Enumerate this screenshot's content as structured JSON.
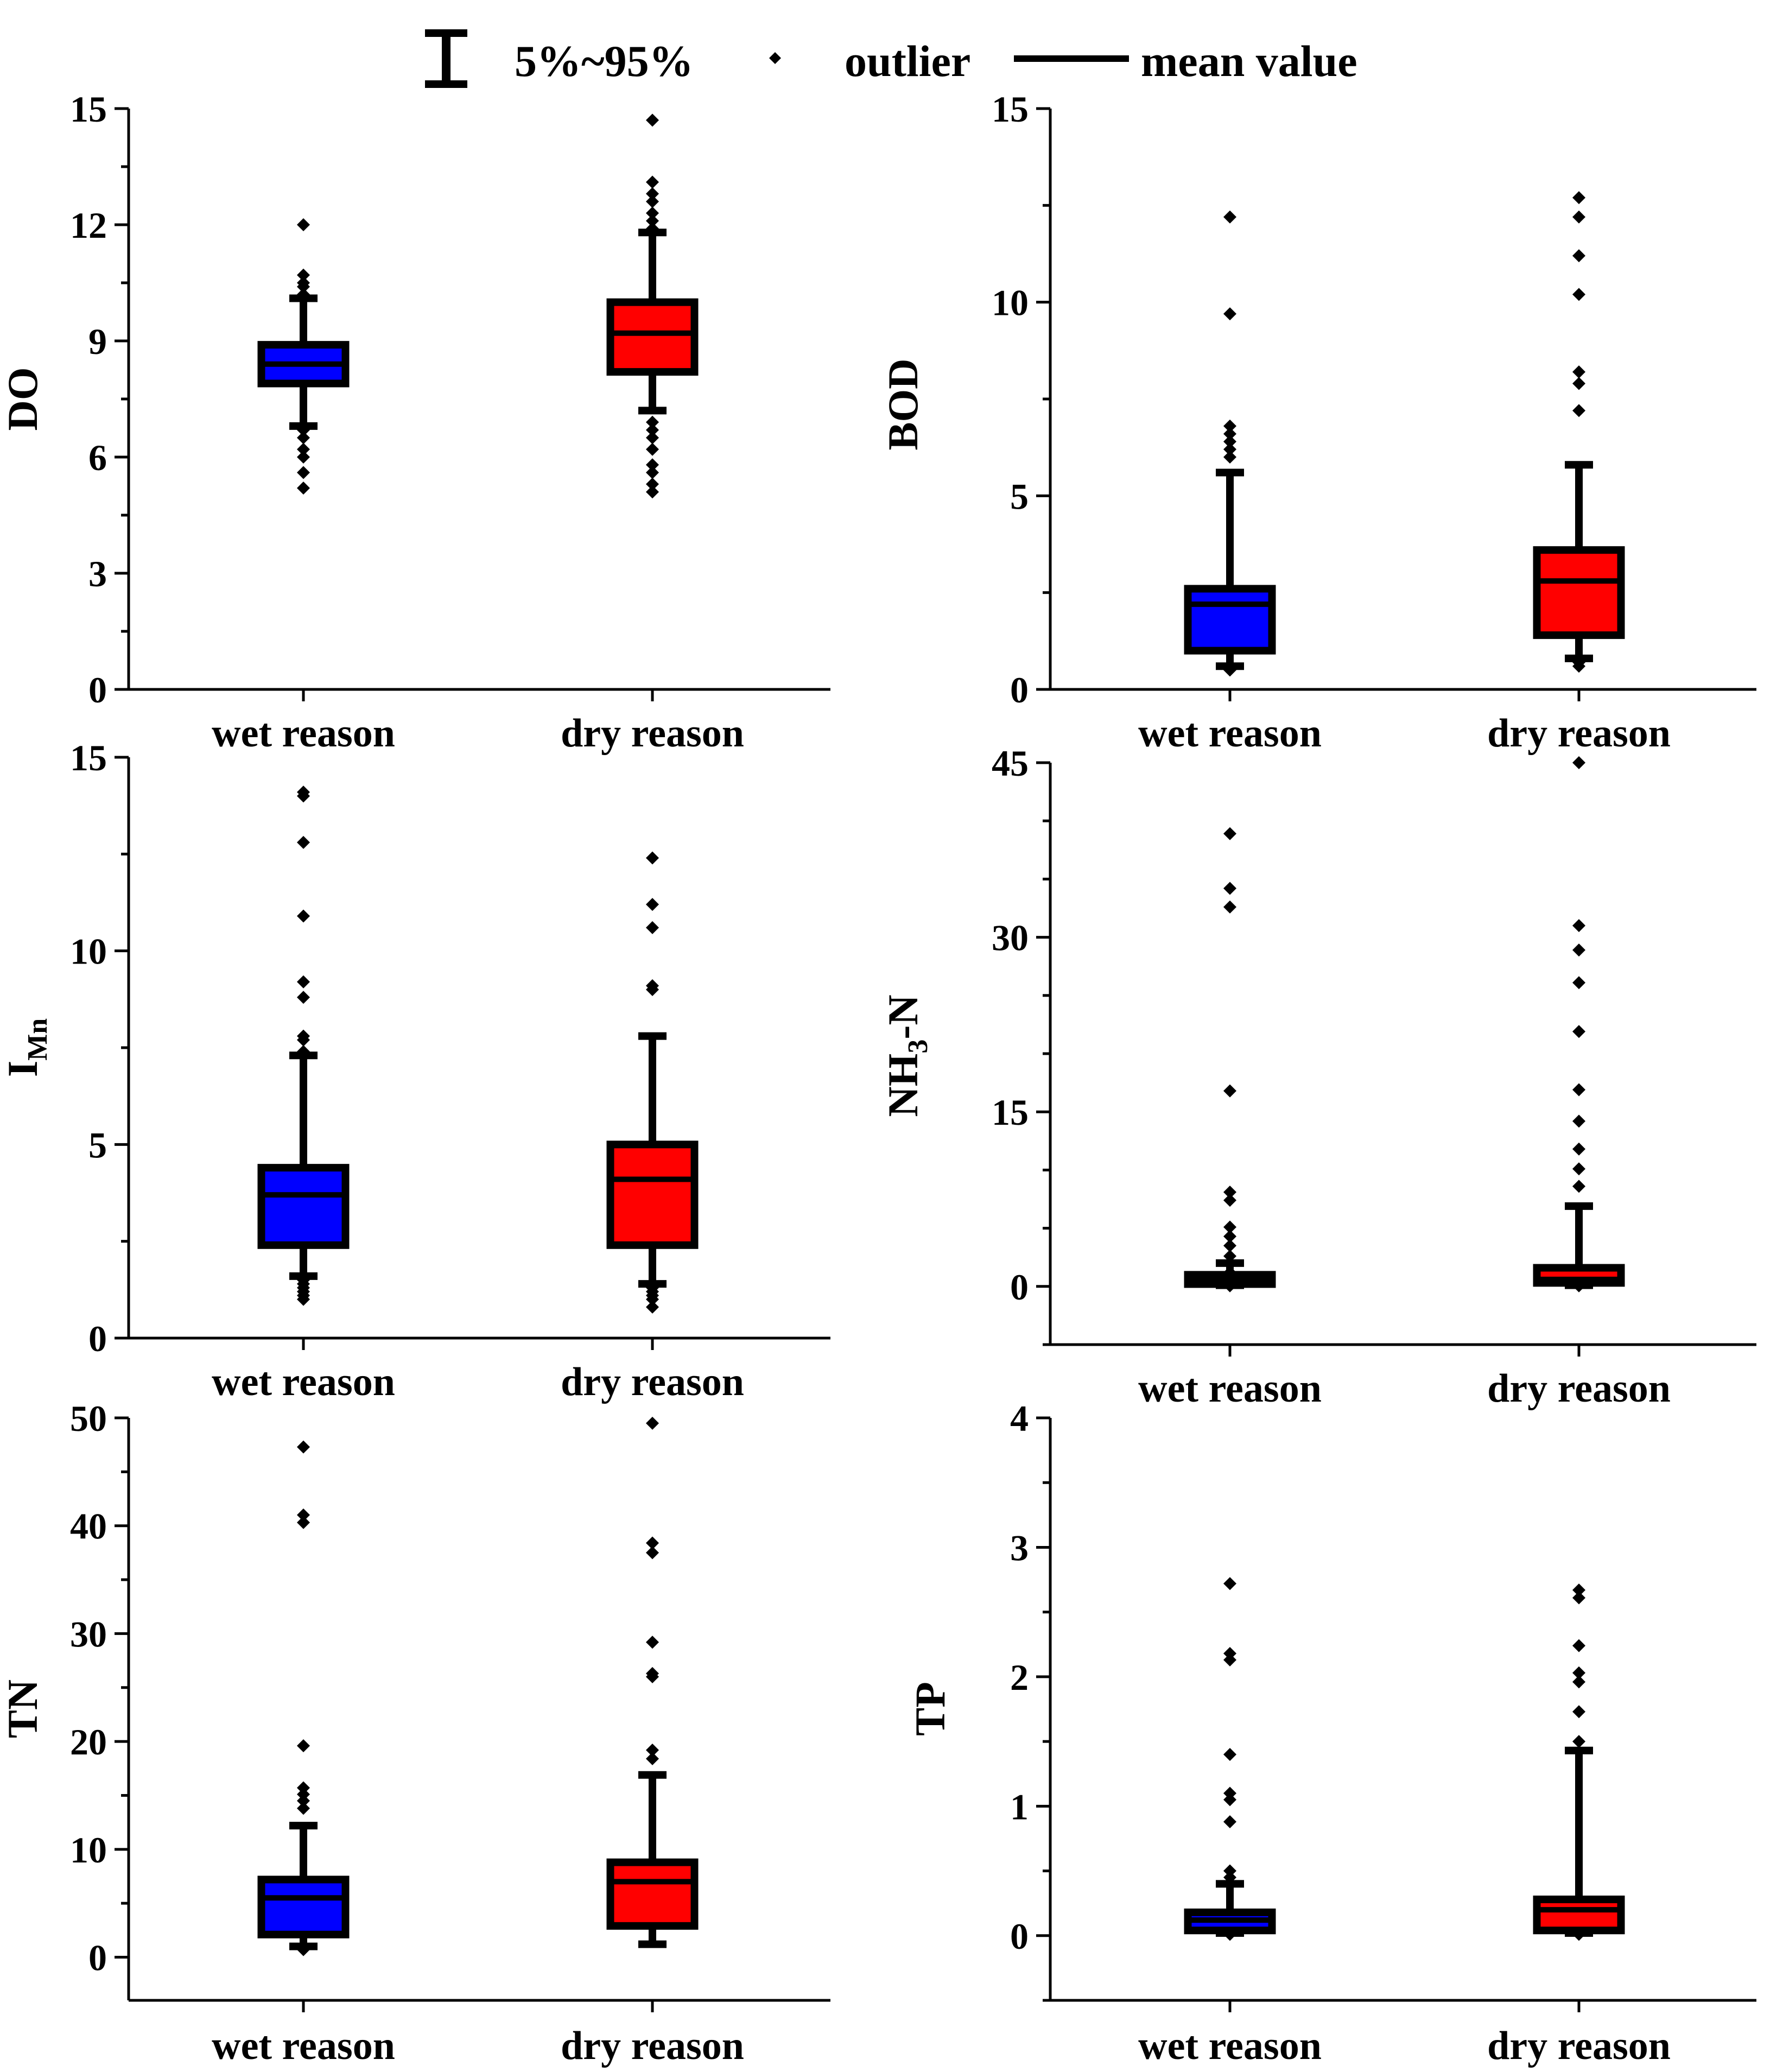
{
  "legend": {
    "whisker_label": "5%~95%",
    "outlier_label": "outlier",
    "mean_label": "mean value"
  },
  "colors": {
    "wet": "#0000ff",
    "dry": "#ff0000",
    "ink": "#000000"
  },
  "chart_data": [
    {
      "type": "box",
      "ylabel": "DO",
      "ylim": [
        0,
        15
      ],
      "yticks": [
        0,
        3,
        6,
        9,
        12,
        15
      ],
      "minor_step": 1.5,
      "categories": [
        "wet reason",
        "dry reason"
      ],
      "series": [
        {
          "name": "wet reason",
          "color": "#0000ff",
          "p5": 6.8,
          "q1": 7.9,
          "mean": 8.4,
          "q3": 8.9,
          "p95": 10.1,
          "outliers": [
            5.2,
            5.6,
            6.0,
            6.2,
            6.5,
            6.7,
            10.2,
            10.4,
            10.5,
            10.7,
            12.0
          ]
        },
        {
          "name": "dry reason",
          "color": "#ff0000",
          "p5": 7.2,
          "q1": 8.2,
          "mean": 9.2,
          "q3": 10.0,
          "p95": 11.8,
          "outliers": [
            5.1,
            5.3,
            5.6,
            5.8,
            6.2,
            6.5,
            6.7,
            6.9,
            11.9,
            12.1,
            12.3,
            12.6,
            12.8,
            13.1,
            14.7
          ]
        }
      ]
    },
    {
      "type": "box",
      "ylabel": "BOD",
      "ylim": [
        0,
        15
      ],
      "yticks": [
        0,
        5,
        10,
        15
      ],
      "minor_step": 2.5,
      "categories": [
        "wet reason",
        "dry reason"
      ],
      "series": [
        {
          "name": "wet reason",
          "color": "#0000ff",
          "p5": 0.6,
          "q1": 1.0,
          "mean": 2.2,
          "q3": 2.6,
          "p95": 5.6,
          "outliers": [
            0.5,
            6.0,
            6.2,
            6.4,
            6.6,
            6.8,
            9.7,
            12.2
          ]
        },
        {
          "name": "dry reason",
          "color": "#ff0000",
          "p5": 0.8,
          "q1": 1.4,
          "mean": 2.8,
          "q3": 3.6,
          "p95": 5.8,
          "outliers": [
            0.6,
            0.7,
            7.2,
            7.9,
            8.2,
            10.2,
            11.2,
            12.2,
            12.7
          ]
        }
      ]
    },
    {
      "type": "box",
      "ylabel": "I",
      "ylabel_sub": "Mn",
      "ylim": [
        0,
        15
      ],
      "yticks": [
        0,
        5,
        10,
        15
      ],
      "minor_step": 2.5,
      "categories": [
        "wet reason",
        "dry reason"
      ],
      "series": [
        {
          "name": "wet reason",
          "color": "#0000ff",
          "p5": 1.6,
          "q1": 2.4,
          "mean": 3.7,
          "q3": 4.4,
          "p95": 7.3,
          "outliers": [
            1.0,
            1.1,
            1.2,
            1.3,
            1.4,
            1.5,
            7.4,
            7.7,
            7.8,
            8.8,
            9.2,
            10.9,
            12.8,
            14.0,
            14.1
          ]
        },
        {
          "name": "dry reason",
          "color": "#ff0000",
          "p5": 1.4,
          "q1": 2.4,
          "mean": 4.1,
          "q3": 5.0,
          "p95": 7.8,
          "outliers": [
            0.8,
            1.0,
            1.1,
            1.2,
            1.3,
            9.0,
            9.1,
            10.6,
            11.2,
            12.4
          ]
        }
      ]
    },
    {
      "type": "box",
      "ylabel": "NH",
      "ylabel_sub": "3",
      "ylabel_suffix": "-N",
      "ylim": [
        -5,
        45
      ],
      "yticks": [
        0,
        15,
        30,
        45
      ],
      "minor_step": 5,
      "categories": [
        "wet reason",
        "dry reason"
      ],
      "series": [
        {
          "name": "wet reason",
          "color": "#0000ff",
          "p5": 0.1,
          "q1": 0.2,
          "mean": 0.6,
          "q3": 1.0,
          "p95": 2.0,
          "outliers": [
            0.05,
            1.2,
            2.6,
            3.5,
            4.3,
            5.1,
            7.4,
            8.1,
            16.8,
            32.6,
            34.2,
            38.9
          ]
        },
        {
          "name": "dry reason",
          "color": "#ff0000",
          "p5": 0.1,
          "q1": 0.3,
          "mean": 0.6,
          "q3": 1.6,
          "p95": 6.9,
          "outliers": [
            0.05,
            8.6,
            10.1,
            11.8,
            14.2,
            16.9,
            21.9,
            26.1,
            28.9,
            31.0,
            45.0
          ]
        }
      ]
    },
    {
      "type": "box",
      "ylabel": "TN",
      "ylim": [
        -4,
        50
      ],
      "yticks": [
        0,
        10,
        20,
        30,
        40,
        50
      ],
      "minor_step": 5,
      "categories": [
        "wet reason",
        "dry reason"
      ],
      "series": [
        {
          "name": "wet reason",
          "color": "#0000ff",
          "p5": 1.0,
          "q1": 2.1,
          "mean": 5.5,
          "q3": 7.2,
          "p95": 12.2,
          "outliers": [
            0.7,
            13.8,
            14.5,
            15.1,
            15.7,
            19.6,
            40.3,
            41.0,
            47.3
          ]
        },
        {
          "name": "dry reason",
          "color": "#ff0000",
          "p5": 1.2,
          "q1": 2.9,
          "mean": 7.0,
          "q3": 8.8,
          "p95": 16.9,
          "outliers": [
            18.4,
            19.2,
            26.0,
            26.3,
            29.2,
            37.5,
            38.4,
            49.5
          ]
        }
      ]
    },
    {
      "type": "box",
      "ylabel": "TP",
      "ylim": [
        -0.5,
        4
      ],
      "yticks": [
        0,
        1,
        2,
        3,
        4
      ],
      "minor_step": 0.5,
      "categories": [
        "wet reason",
        "dry reason"
      ],
      "series": [
        {
          "name": "wet reason",
          "color": "#0000ff",
          "p5": 0.02,
          "q1": 0.04,
          "mean": 0.12,
          "q3": 0.18,
          "p95": 0.4,
          "outliers": [
            0.01,
            0.45,
            0.5,
            0.88,
            1.05,
            1.1,
            1.4,
            2.13,
            2.18,
            2.72
          ]
        },
        {
          "name": "dry reason",
          "color": "#ff0000",
          "p5": 0.02,
          "q1": 0.04,
          "mean": 0.2,
          "q3": 0.28,
          "p95": 1.43,
          "outliers": [
            0.01,
            1.5,
            1.73,
            1.96,
            2.03,
            2.24,
            2.61,
            2.67
          ]
        }
      ]
    }
  ]
}
